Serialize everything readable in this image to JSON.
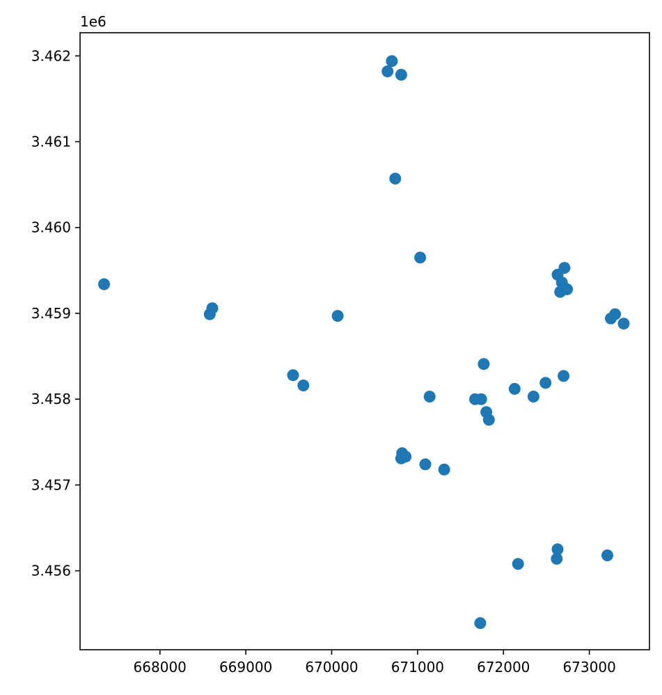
{
  "chart_data": {
    "type": "scatter",
    "title": "",
    "xlabel": "",
    "ylabel": "",
    "xlim": [
      667070,
      673700
    ],
    "ylim": [
      3455080,
      3462270
    ],
    "y_offset_label": "1e6",
    "x_ticks": [
      668000,
      669000,
      670000,
      671000,
      672000,
      673000
    ],
    "x_tick_labels": [
      "668000",
      "669000",
      "670000",
      "671000",
      "672000",
      "673000"
    ],
    "y_ticks": [
      3456000,
      3457000,
      3458000,
      3459000,
      3460000,
      3461000,
      3462000
    ],
    "y_tick_labels": [
      "3.456",
      "3.457",
      "3.458",
      "3.459",
      "3.460",
      "3.461",
      "3.462"
    ],
    "grid": false,
    "marker_color": "#1f77b4",
    "series": [
      {
        "points": [
          {
            "x": 667350,
            "y": 3459340
          },
          {
            "x": 668580,
            "y": 3458990
          },
          {
            "x": 668610,
            "y": 3459060
          },
          {
            "x": 669550,
            "y": 3458280
          },
          {
            "x": 669670,
            "y": 3458160
          },
          {
            "x": 670070,
            "y": 3458970
          },
          {
            "x": 670650,
            "y": 3461820
          },
          {
            "x": 670700,
            "y": 3461940
          },
          {
            "x": 670810,
            "y": 3461780
          },
          {
            "x": 670740,
            "y": 3460570
          },
          {
            "x": 671030,
            "y": 3459650
          },
          {
            "x": 671140,
            "y": 3458030
          },
          {
            "x": 670820,
            "y": 3457370
          },
          {
            "x": 670810,
            "y": 3457310
          },
          {
            "x": 670860,
            "y": 3457330
          },
          {
            "x": 671090,
            "y": 3457240
          },
          {
            "x": 671310,
            "y": 3457180
          },
          {
            "x": 671670,
            "y": 3458000
          },
          {
            "x": 671740,
            "y": 3458000
          },
          {
            "x": 671770,
            "y": 3458410
          },
          {
            "x": 671800,
            "y": 3457850
          },
          {
            "x": 671830,
            "y": 3457760
          },
          {
            "x": 672130,
            "y": 3458120
          },
          {
            "x": 672350,
            "y": 3458030
          },
          {
            "x": 672490,
            "y": 3458190
          },
          {
            "x": 672700,
            "y": 3458270
          },
          {
            "x": 672630,
            "y": 3459450
          },
          {
            "x": 672710,
            "y": 3459530
          },
          {
            "x": 672680,
            "y": 3459360
          },
          {
            "x": 672660,
            "y": 3459250
          },
          {
            "x": 672740,
            "y": 3459280
          },
          {
            "x": 673250,
            "y": 3458940
          },
          {
            "x": 673300,
            "y": 3458990
          },
          {
            "x": 673400,
            "y": 3458880
          },
          {
            "x": 672170,
            "y": 3456080
          },
          {
            "x": 672630,
            "y": 3456250
          },
          {
            "x": 672620,
            "y": 3456140
          },
          {
            "x": 673210,
            "y": 3456180
          },
          {
            "x": 671730,
            "y": 3455390
          }
        ]
      }
    ]
  }
}
